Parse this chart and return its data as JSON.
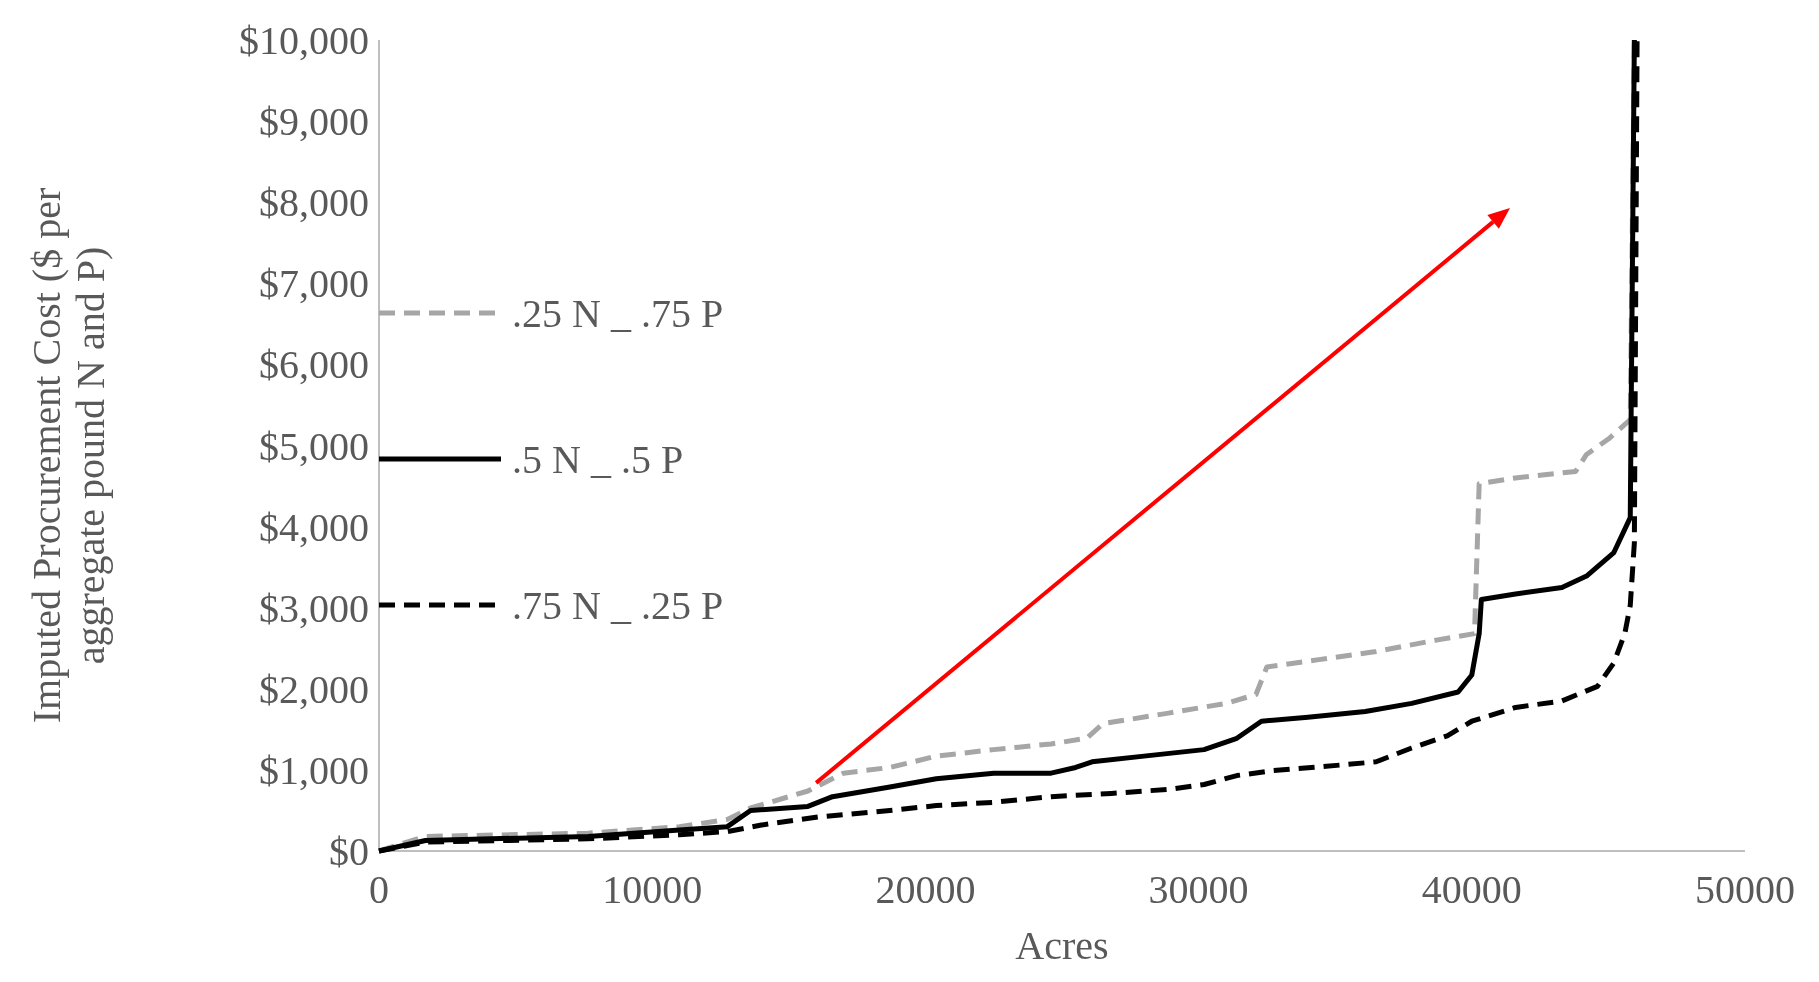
{
  "chart_data": {
    "type": "line",
    "xlabel": "Acres",
    "ylabel": "Imputed Procurement Cost ($ per aggregate pound N and P)",
    "xlim": [
      0,
      50000
    ],
    "xticks": [
      0,
      10000,
      20000,
      30000,
      40000,
      50000
    ],
    "ylim": [
      0,
      10000
    ],
    "yticks": [
      {
        "value": 0,
        "label": "$0"
      },
      {
        "value": 1000,
        "label": "$1,000"
      },
      {
        "value": 2000,
        "label": "$2,000"
      },
      {
        "value": 3000,
        "label": "$3,000"
      },
      {
        "value": 4000,
        "label": "$4,000"
      },
      {
        "value": 5000,
        "label": "$5,000"
      },
      {
        "value": 6000,
        "label": "$6,000"
      },
      {
        "value": 7000,
        "label": "$7,000"
      },
      {
        "value": 8000,
        "label": "$8,000"
      },
      {
        "value": 9000,
        "label": "$9,000"
      },
      {
        "value": 10000,
        "label": "$10,000"
      }
    ],
    "grid": false,
    "legend": "left",
    "series": [
      {
        "name": ".25 N _ .75 P",
        "color": "#a6a6a6",
        "line_style": "dashed",
        "x": [
          0,
          1700,
          7650,
          11000,
          12750,
          13600,
          15700,
          17000,
          18700,
          20400,
          22500,
          24600,
          25900,
          26500,
          28900,
          31000,
          32100,
          32500,
          34400,
          36500,
          38700,
          40100,
          40270,
          41600,
          43800,
          44200,
          45000,
          45800,
          45950
        ],
        "values": [
          0,
          180,
          220,
          300,
          390,
          530,
          740,
          960,
          1030,
          1170,
          1250,
          1320,
          1390,
          1570,
          1700,
          1820,
          1930,
          2270,
          2360,
          2460,
          2600,
          2680,
          4530,
          4600,
          4680,
          4890,
          5080,
          5320,
          10000
        ]
      },
      {
        "name": ".5 N _ .5 P",
        "color": "#000000",
        "line_style": "solid",
        "x": [
          0,
          1700,
          7650,
          11000,
          12750,
          13600,
          15700,
          16600,
          18700,
          20400,
          22500,
          24600,
          25500,
          26100,
          28000,
          30200,
          31400,
          32300,
          34000,
          36100,
          37800,
          39500,
          40000,
          40270,
          40350,
          41600,
          43300,
          44200,
          45200,
          45800,
          45950
        ],
        "values": [
          0,
          130,
          180,
          260,
          300,
          500,
          550,
          670,
          790,
          890,
          960,
          960,
          1030,
          1100,
          1170,
          1250,
          1390,
          1600,
          1650,
          1720,
          1820,
          1960,
          2170,
          2680,
          3100,
          3170,
          3250,
          3390,
          3680,
          4110,
          10000
        ]
      },
      {
        "name": ".75 N _ .25 P",
        "color": "#000000",
        "line_style": "dashed",
        "x": [
          0,
          1700,
          7650,
          11000,
          12750,
          14000,
          16100,
          18700,
          20400,
          22500,
          24600,
          26800,
          28900,
          30200,
          31400,
          32700,
          35200,
          36500,
          37800,
          39100,
          40000,
          41600,
          43300,
          44600,
          45200,
          45600,
          45800,
          45950,
          46050
        ],
        "values": [
          0,
          110,
          150,
          200,
          240,
          320,
          420,
          500,
          560,
          600,
          670,
          710,
          760,
          820,
          930,
          990,
          1060,
          1100,
          1270,
          1420,
          1600,
          1770,
          1850,
          2030,
          2320,
          2680,
          3030,
          3800,
          10000
        ]
      }
    ]
  }
}
